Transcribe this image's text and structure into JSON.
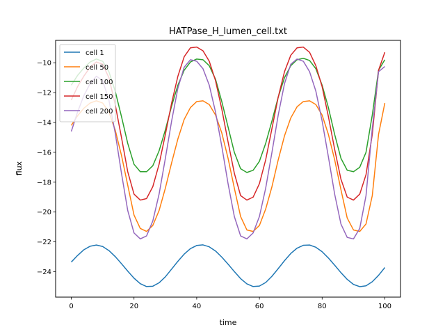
{
  "chart_data": {
    "type": "line",
    "title": "HATPase_H_lumen_cell.txt",
    "xlabel": "time",
    "ylabel": "flux",
    "xlim": [
      -5,
      105
    ],
    "ylim": [
      -25.7,
      -8.5
    ],
    "xticks": [
      0,
      20,
      40,
      60,
      80,
      100
    ],
    "yticks": [
      -24,
      -22,
      -20,
      -18,
      -16,
      -14,
      -12,
      -10
    ],
    "grid": false,
    "legend_position": "top-left",
    "x": [
      0,
      2,
      4,
      6,
      8,
      10,
      12,
      14,
      16,
      18,
      20,
      22,
      24,
      26,
      28,
      30,
      32,
      34,
      36,
      38,
      40,
      42,
      44,
      46,
      48,
      50,
      52,
      54,
      56,
      58,
      60,
      62,
      64,
      66,
      68,
      70,
      72,
      74,
      76,
      78,
      80,
      82,
      84,
      86,
      88,
      90,
      92,
      94,
      96,
      98,
      100
    ],
    "series": [
      {
        "name": "cell 1",
        "color": "#1f77b4",
        "values": [
          -23.35,
          -22.91,
          -22.53,
          -22.29,
          -22.21,
          -22.31,
          -22.58,
          -22.98,
          -23.46,
          -23.96,
          -24.43,
          -24.8,
          -24.99,
          -24.97,
          -24.74,
          -24.34,
          -23.82,
          -23.3,
          -22.82,
          -22.45,
          -22.24,
          -22.2,
          -22.33,
          -22.61,
          -23.02,
          -23.49,
          -23.99,
          -24.46,
          -24.81,
          -24.99,
          -24.96,
          -24.72,
          -24.3,
          -23.79,
          -23.26,
          -22.78,
          -22.42,
          -22.23,
          -22.21,
          -22.36,
          -22.66,
          -23.08,
          -23.56,
          -24.06,
          -24.51,
          -24.85,
          -25,
          -24.94,
          -24.67,
          -24.24,
          -23.72
        ]
      },
      {
        "name": "cell 50",
        "color": "#ff7f0e",
        "values": [
          -14.2,
          -13.55,
          -13.05,
          -12.7,
          -12.55,
          -12.7,
          -13.3,
          -14.5,
          -16.2,
          -18.2,
          -20.2,
          -21.1,
          -21.3,
          -20.9,
          -19.9,
          -18.4,
          -16.7,
          -15.1,
          -13.8,
          -13,
          -12.6,
          -12.55,
          -12.8,
          -13.5,
          -14.7,
          -16.4,
          -18.4,
          -20.3,
          -21.2,
          -21.3,
          -20.9,
          -19.8,
          -18.3,
          -16.5,
          -14.9,
          -13.7,
          -12.95,
          -12.6,
          -12.55,
          -12.8,
          -13.5,
          -14.8,
          -16.5,
          -18.5,
          -20.4,
          -21.2,
          -21.3,
          -20.8,
          -18.9,
          -14.8,
          -12.7
        ]
      },
      {
        "name": "cell 100",
        "color": "#2ca02c",
        "values": [
          -11.5,
          -10.85,
          -10.35,
          -9.95,
          -9.75,
          -9.9,
          -10.6,
          -11.9,
          -13.6,
          -15.4,
          -16.8,
          -17.3,
          -17.3,
          -16.9,
          -15.9,
          -14.5,
          -12.9,
          -11.5,
          -10.5,
          -9.95,
          -9.75,
          -9.8,
          -10.2,
          -11.1,
          -12.6,
          -14.3,
          -16,
          -17.1,
          -17.35,
          -17.2,
          -16.6,
          -15.4,
          -13.9,
          -12.3,
          -11,
          -10.2,
          -9.8,
          -9.7,
          -9.85,
          -10.4,
          -11.5,
          -13,
          -14.8,
          -16.4,
          -17.2,
          -17.3,
          -17,
          -16,
          -13.5,
          -10.5,
          -9.8
        ]
      },
      {
        "name": "cell 150",
        "color": "#d62728",
        "values": [
          -12.5,
          -11.6,
          -10.9,
          -10.3,
          -9.95,
          -10.1,
          -11,
          -12.8,
          -15,
          -17.3,
          -18.8,
          -19.2,
          -19.1,
          -18.3,
          -16.8,
          -14.8,
          -12.7,
          -10.9,
          -9.6,
          -9,
          -8.95,
          -9.2,
          -9.9,
          -11.2,
          -13.1,
          -15.3,
          -17.4,
          -18.9,
          -19.2,
          -19,
          -18.1,
          -16.5,
          -14.4,
          -12.3,
          -10.6,
          -9.5,
          -9,
          -8.95,
          -9.3,
          -10.2,
          -11.6,
          -13.6,
          -15.8,
          -17.8,
          -19,
          -19.2,
          -18.8,
          -17.5,
          -14.8,
          -10.5,
          -9.3
        ]
      },
      {
        "name": "cell 200",
        "color": "#9467bd",
        "values": [
          -14.6,
          -13.3,
          -12.2,
          -11.4,
          -10.9,
          -11.2,
          -12.5,
          -14.7,
          -17.4,
          -19.9,
          -21.4,
          -21.8,
          -21.6,
          -20.6,
          -18.8,
          -16.4,
          -13.9,
          -11.7,
          -10.3,
          -9.8,
          -9.9,
          -10.4,
          -11.5,
          -13.3,
          -15.6,
          -18.1,
          -20.3,
          -21.6,
          -21.8,
          -21.4,
          -20.3,
          -18.4,
          -16,
          -13.5,
          -11.4,
          -10.1,
          -9.75,
          -9.9,
          -10.6,
          -11.9,
          -13.9,
          -16.3,
          -18.8,
          -20.8,
          -21.7,
          -21.8,
          -21.1,
          -18.9,
          -14.4,
          -10.6,
          -10.25
        ]
      }
    ]
  }
}
